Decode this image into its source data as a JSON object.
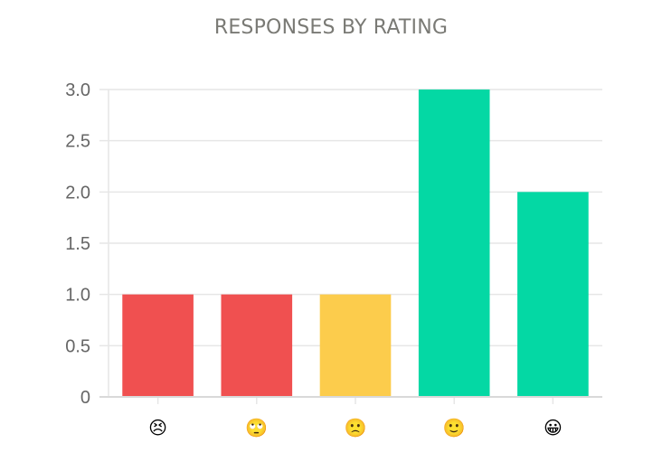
{
  "chart_data": {
    "type": "bar",
    "title": "RESPONSES BY RATING",
    "categories": [
      "😣",
      "🙄",
      "🙁",
      "🙂",
      "😀"
    ],
    "category_icons": [
      "persevering-face-icon",
      "eye-roll-face-icon",
      "slightly-frowning-face-icon",
      "slightly-smiling-face-icon",
      "grinning-face-icon"
    ],
    "values": [
      1,
      1,
      1,
      3,
      2
    ],
    "bar_colors": [
      "#f05050",
      "#f05050",
      "#fccc4c",
      "#04d8a4",
      "#04d8a4"
    ],
    "ylim": [
      0,
      3
    ],
    "yticks": [
      "0",
      "0.5",
      "1.0",
      "1.5",
      "2.0",
      "2.5",
      "3.0"
    ],
    "ytick_values": [
      0,
      0.5,
      1,
      1.5,
      2,
      2.5,
      3
    ],
    "grid": true,
    "xlabel": "",
    "ylabel": ""
  }
}
